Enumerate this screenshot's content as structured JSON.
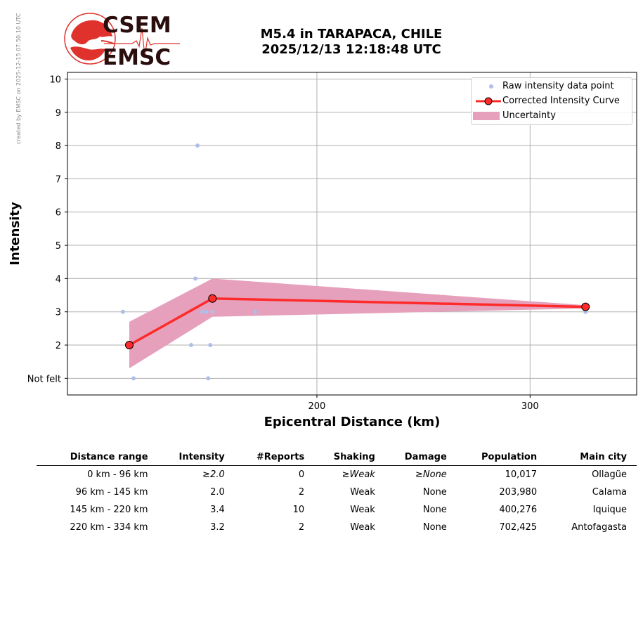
{
  "credit": "created by EMSC on 2025-12-15 07:50:10 UTC",
  "logo": {
    "top_text": "CSEM",
    "bottom_text": "EMSC"
  },
  "header": {
    "title_line1": "M5.4 in TARAPACA, CHILE",
    "title_line2": "2025/12/13 12:18:48 UTC"
  },
  "colors": {
    "raw_points": "#aebfe8",
    "curve": "#ff2a2a",
    "uncertainty": "#e6a0bb",
    "grid": "#b0b0b0"
  },
  "chart_data": {
    "type": "line",
    "xlabel": "Epicentral Distance (km)",
    "ylabel": "Intensity",
    "xlim": [
      83,
      350
    ],
    "ylim": [
      0.5,
      10.2
    ],
    "x_ticks": [
      200,
      300
    ],
    "y_ticks": [
      {
        "value": 1,
        "label": "Not felt"
      },
      {
        "value": 2,
        "label": "2"
      },
      {
        "value": 3,
        "label": "3"
      },
      {
        "value": 4,
        "label": "4"
      },
      {
        "value": 5,
        "label": "5"
      },
      {
        "value": 6,
        "label": "6"
      },
      {
        "value": 7,
        "label": "7"
      },
      {
        "value": 8,
        "label": "8"
      },
      {
        "value": 9,
        "label": "9"
      },
      {
        "value": 10,
        "label": "10"
      }
    ],
    "grid": true,
    "legend_placement": "top-right",
    "legend": [
      "Raw intensity data point",
      "Corrected Intensity Curve",
      "Uncertainty"
    ],
    "raw_points": [
      {
        "x": 109,
        "y": 3
      },
      {
        "x": 114,
        "y": 1
      },
      {
        "x": 141,
        "y": 2
      },
      {
        "x": 143,
        "y": 4
      },
      {
        "x": 144,
        "y": 8
      },
      {
        "x": 146,
        "y": 3
      },
      {
        "x": 148,
        "y": 3
      },
      {
        "x": 149,
        "y": 1
      },
      {
        "x": 150,
        "y": 2
      },
      {
        "x": 151,
        "y": 3
      },
      {
        "x": 171,
        "y": 3
      },
      {
        "x": 326,
        "y": 3
      }
    ],
    "curve": [
      {
        "x": 112,
        "y": 2.0
      },
      {
        "x": 151,
        "y": 3.4
      },
      {
        "x": 326,
        "y": 3.15
      }
    ],
    "uncertainty": {
      "x": [
        112,
        151,
        326
      ],
      "upper": [
        2.7,
        4.0,
        3.2
      ],
      "lower": [
        1.3,
        2.85,
        3.1
      ]
    }
  },
  "summary_table": {
    "headers": [
      "Distance range",
      "Intensity",
      "#Reports",
      "Shaking",
      "Damage",
      "Population",
      "Main city"
    ],
    "rows": [
      [
        "0 km -   96 km",
        "≥2.0",
        "0",
        "≥Weak",
        "≥None",
        "10,017",
        "Ollagüe"
      ],
      [
        "96 km -  145 km",
        "2.0",
        "2",
        "Weak",
        "None",
        "203,980",
        "Calama"
      ],
      [
        "145 km -  220 km",
        "3.4",
        "10",
        "Weak",
        "None",
        "400,276",
        "Iquique"
      ],
      [
        "220 km -  334 km",
        "3.2",
        "2",
        "Weak",
        "None",
        "702,425",
        "Antofagasta"
      ]
    ],
    "italic_cells": [
      [
        0,
        1
      ],
      [
        0,
        3
      ],
      [
        0,
        4
      ]
    ]
  }
}
